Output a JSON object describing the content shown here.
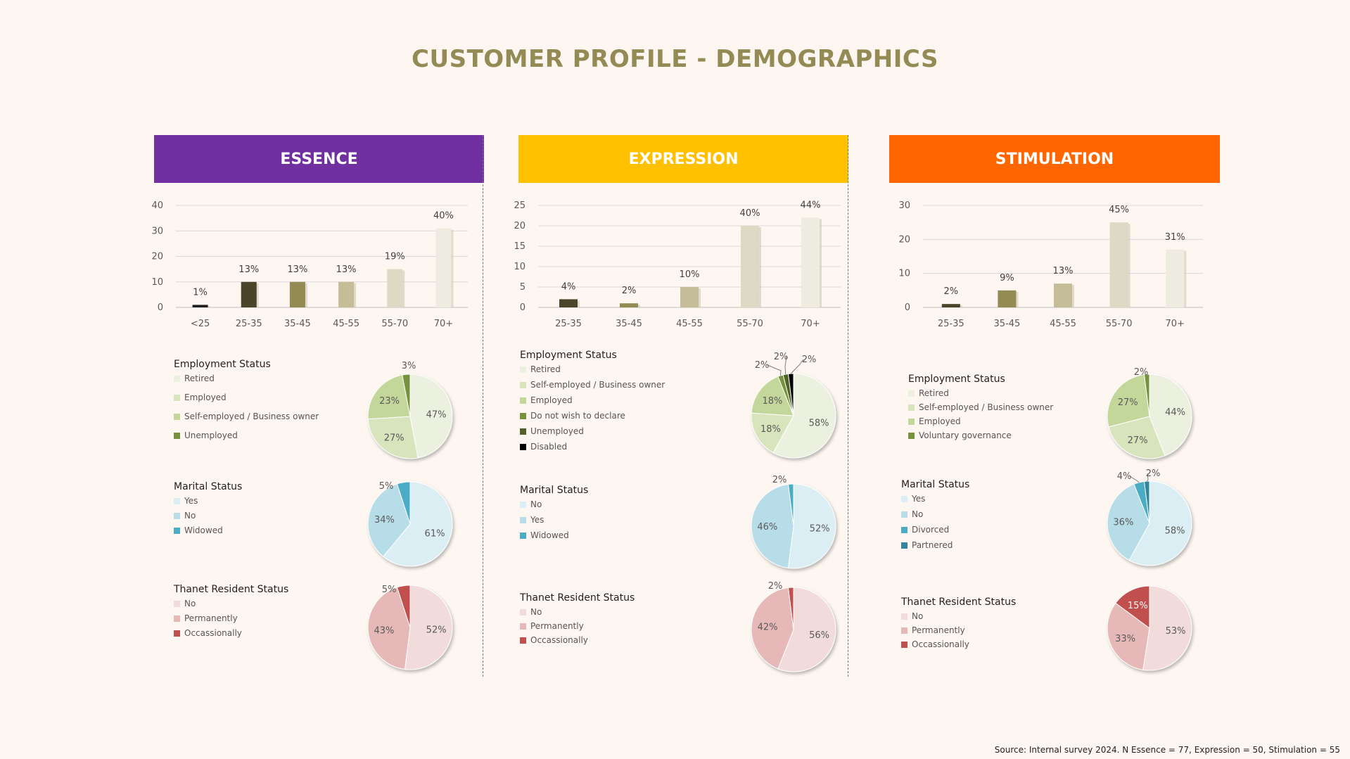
{
  "title": "CUSTOMER PROFILE - DEMOGRAPHICS",
  "source": "Source: Internal survey 2024. N Essence = 77, Expression = 50, Stimulation = 55",
  "segments": [
    {
      "id": "essence",
      "name": "ESSENCE",
      "color": "#7030a0"
    },
    {
      "id": "expression",
      "name": "EXPRESSION",
      "color": "#ffc000"
    },
    {
      "id": "stimulation",
      "name": "STIMULATION",
      "color": "#ff6600"
    }
  ],
  "chart_data": [
    {
      "type": "bar",
      "id": "essence-age",
      "title": "",
      "categories": [
        "<25",
        "25-35",
        "35-45",
        "45-55",
        "55-70",
        "70+"
      ],
      "values": [
        1,
        10,
        10,
        10,
        15,
        31
      ],
      "labels": [
        "1%",
        "13%",
        "13%",
        "13%",
        "19%",
        "40%"
      ],
      "ylim": [
        0,
        40
      ],
      "ticks": [
        0,
        10,
        20,
        30,
        40
      ],
      "colors": [
        "#1f1f1f",
        "#4a452a",
        "#948a54",
        "#c4bd97",
        "#ddd9c4",
        "#eeece1"
      ]
    },
    {
      "type": "bar",
      "id": "expression-age",
      "title": "",
      "categories": [
        "25-35",
        "35-45",
        "45-55",
        "55-70",
        "70+"
      ],
      "values": [
        2,
        1,
        5,
        20,
        22
      ],
      "labels": [
        "4%",
        "2%",
        "10%",
        "40%",
        "44%"
      ],
      "ylim": [
        0,
        25
      ],
      "ticks": [
        0,
        5,
        10,
        15,
        20,
        25
      ],
      "colors": [
        "#4a452a",
        "#948a54",
        "#c4bd97",
        "#ddd9c4",
        "#eeece1"
      ]
    },
    {
      "type": "bar",
      "id": "stimulation-age",
      "title": "",
      "categories": [
        "25-35",
        "35-45",
        "45-55",
        "55-70",
        "70+"
      ],
      "values": [
        1,
        5,
        7,
        25,
        17
      ],
      "labels": [
        "2%",
        "9%",
        "13%",
        "45%",
        "31%"
      ],
      "ylim": [
        0,
        30
      ],
      "ticks": [
        0,
        10,
        20,
        30
      ],
      "colors": [
        "#4a452a",
        "#948a54",
        "#c4bd97",
        "#ddd9c4",
        "#eeece1"
      ]
    },
    {
      "type": "pie",
      "id": "essence-employment",
      "title": "Employment Status",
      "labels": [
        "Retired",
        "Employed",
        "Self-employed / Business owner",
        "Unemployed"
      ],
      "values": [
        47,
        27,
        23,
        3
      ],
      "colors": [
        "#ebf1de",
        "#d8e4bc",
        "#c4d79b",
        "#76923c"
      ]
    },
    {
      "type": "pie",
      "id": "essence-marital",
      "title": "Marital Status",
      "labels": [
        "Yes",
        "No",
        "Widowed"
      ],
      "values": [
        61,
        34,
        5
      ],
      "colors": [
        "#dbeef3",
        "#b7dee8",
        "#4bacc6"
      ]
    },
    {
      "type": "pie",
      "id": "essence-resident",
      "title": "Thanet Resident Status",
      "labels": [
        "No",
        "Permanently",
        "Occassionally"
      ],
      "values": [
        52,
        43,
        5
      ],
      "colors": [
        "#f2dcdb",
        "#e6b9b8",
        "#c0504d"
      ]
    },
    {
      "type": "pie",
      "id": "expression-employment",
      "title": "Employment Status",
      "labels": [
        "Retired",
        "Self-employed / Business owner",
        "Employed",
        "Do not wish to declare",
        "Unemployed",
        "Disabled"
      ],
      "values": [
        58,
        18,
        18,
        2,
        2,
        2
      ],
      "colors": [
        "#ebf1de",
        "#d8e4bc",
        "#c4d79b",
        "#76923c",
        "#4f6228",
        "#000000"
      ]
    },
    {
      "type": "pie",
      "id": "expression-marital",
      "title": "Marital Status",
      "labels": [
        "No",
        "Yes",
        "Widowed"
      ],
      "values": [
        52,
        46,
        2
      ],
      "colors": [
        "#dbeef3",
        "#b7dee8",
        "#4bacc6"
      ]
    },
    {
      "type": "pie",
      "id": "expression-resident",
      "title": "Thanet Resident Status",
      "labels": [
        "No",
        "Permanently",
        "Occassionally"
      ],
      "values": [
        56,
        42,
        2
      ],
      "colors": [
        "#f2dcdb",
        "#e6b9b8",
        "#c0504d"
      ]
    },
    {
      "type": "pie",
      "id": "stimulation-employment",
      "title": "Employment Status",
      "labels": [
        "Retired",
        "Self-employed / Business owner",
        "Employed",
        "Voluntary governance"
      ],
      "values": [
        44,
        27,
        27,
        2
      ],
      "colors": [
        "#ebf1de",
        "#d8e4bc",
        "#c4d79b",
        "#76923c"
      ]
    },
    {
      "type": "pie",
      "id": "stimulation-marital",
      "title": "Marital Status",
      "labels": [
        "Yes",
        "No",
        "Divorced",
        "Partnered"
      ],
      "values": [
        58,
        36,
        4,
        2
      ],
      "colors": [
        "#dbeef3",
        "#b7dee8",
        "#4bacc6",
        "#31859c"
      ]
    },
    {
      "type": "pie",
      "id": "stimulation-resident",
      "title": "Thanet Resident Status",
      "labels": [
        "No",
        "Permanently",
        "Occassionally"
      ],
      "values": [
        53,
        33,
        15
      ],
      "colors": [
        "#f2dcdb",
        "#e6b9b8",
        "#c0504d"
      ]
    }
  ]
}
